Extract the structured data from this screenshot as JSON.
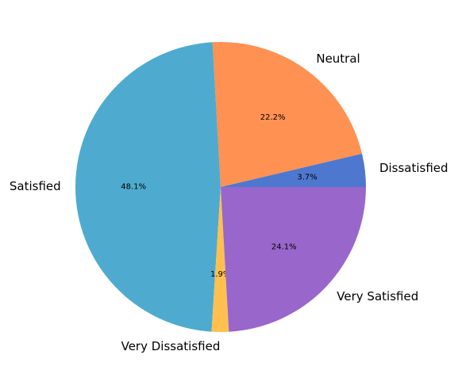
{
  "chart_data": {
    "type": "pie",
    "categories": [
      "Dissatisfied",
      "Neutral",
      "Satisfied",
      "Very Dissatisfied",
      "Very Satisfied"
    ],
    "values": [
      3.7,
      22.2,
      48.1,
      1.9,
      24.1
    ],
    "value_labels": [
      "3.7%",
      "22.2%",
      "48.1%",
      "1.9%",
      "24.1%"
    ],
    "colors": [
      "#4e78cf",
      "#ff9152",
      "#4eabcf",
      "#ffc04f",
      "#9966cc"
    ]
  }
}
